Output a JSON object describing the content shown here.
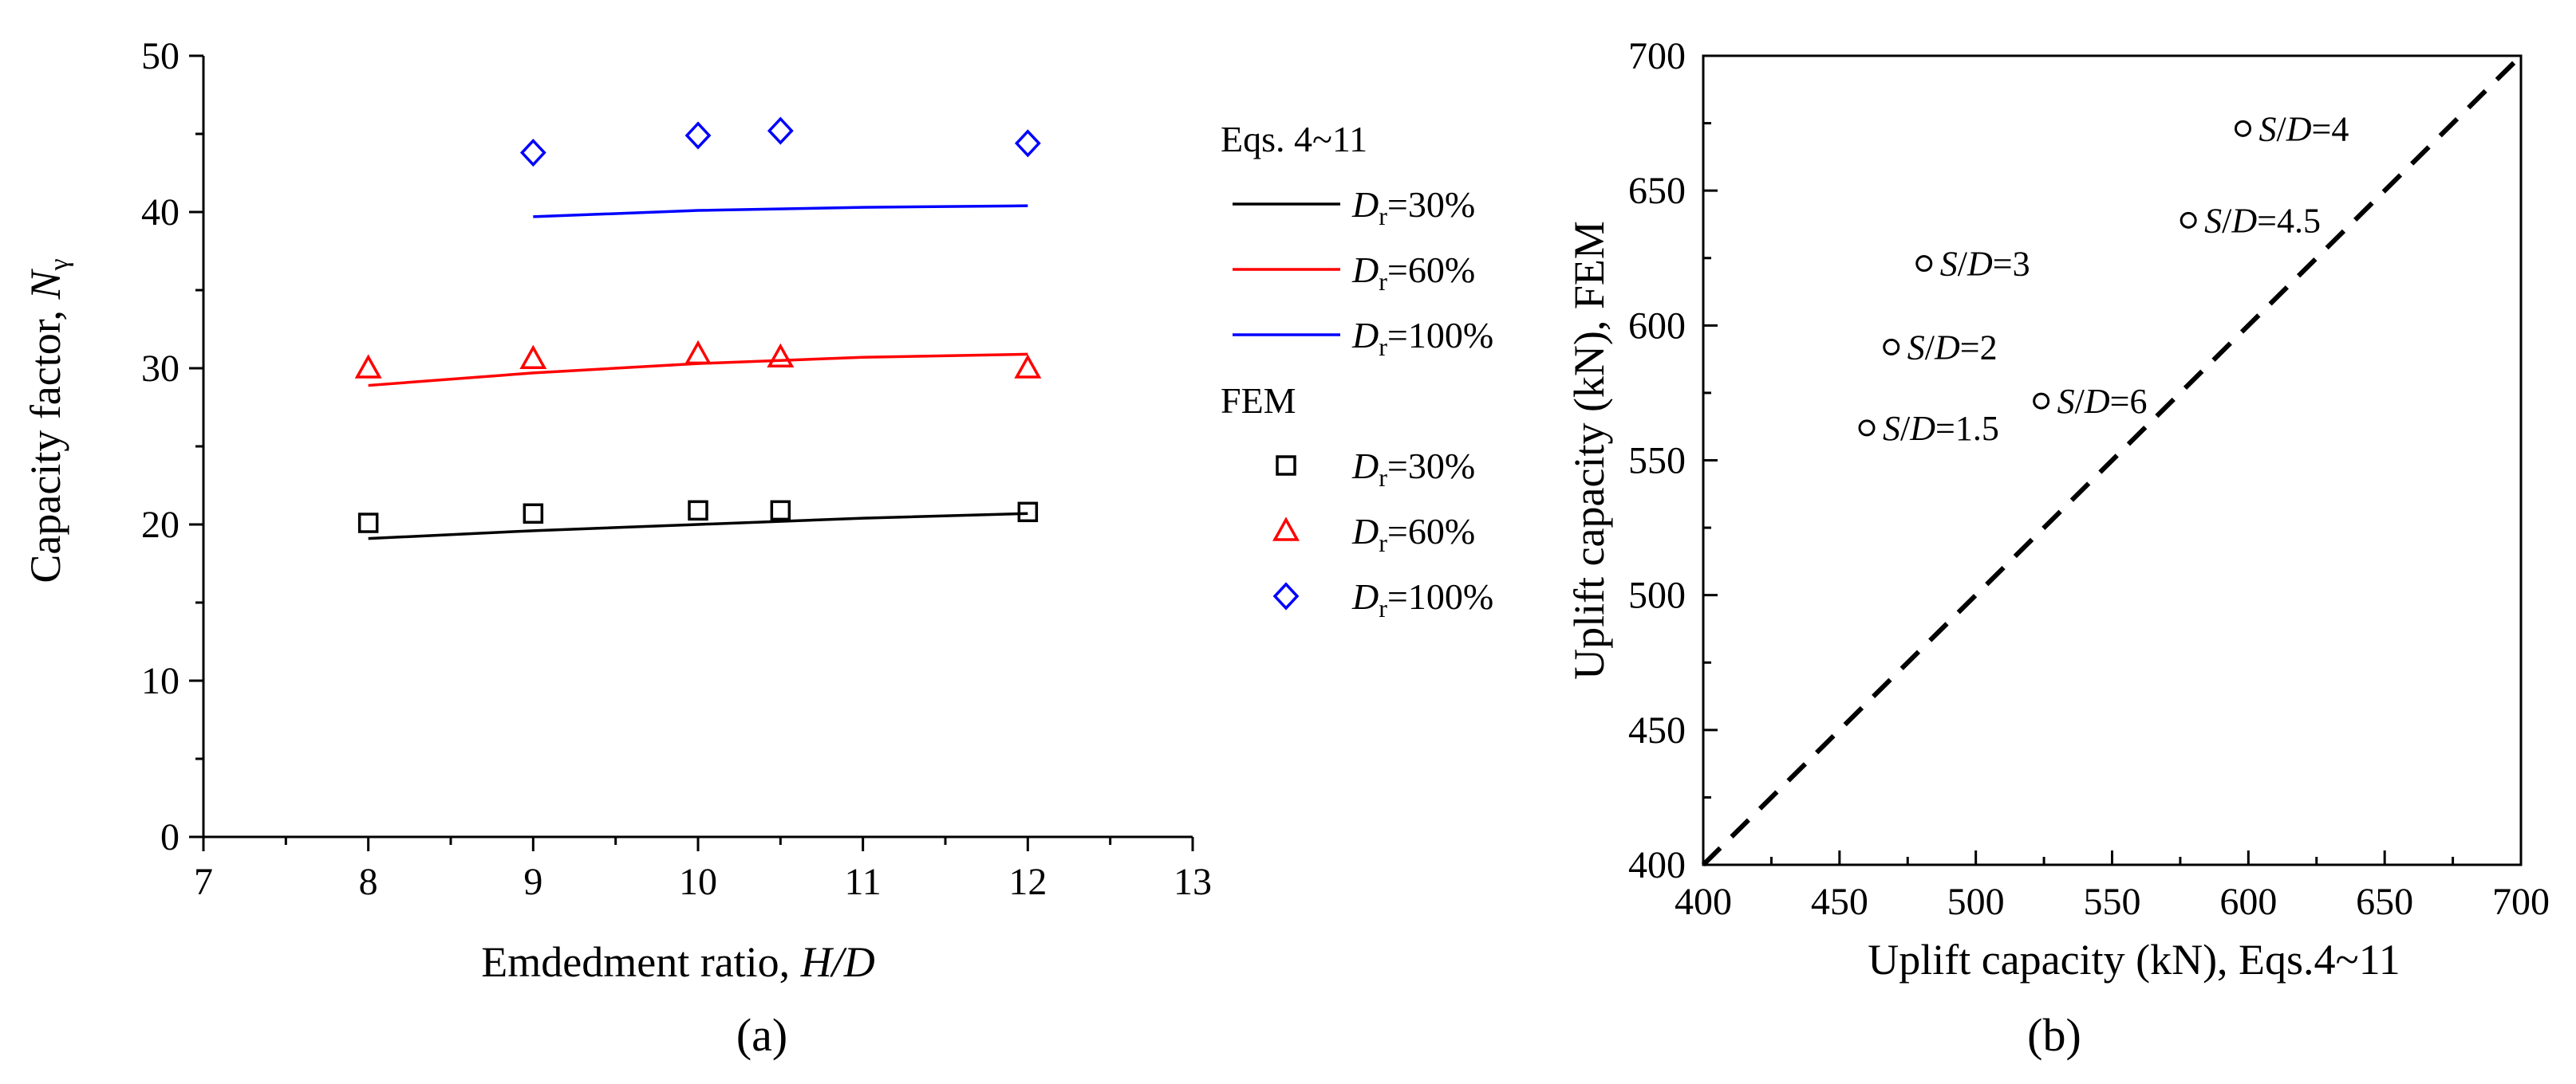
{
  "chart_data": [
    {
      "type": "line",
      "panel_label": "(a)",
      "title": "",
      "xlabel": "Emdedment ratio, ",
      "xlabel_italic": "H/D",
      "ylabel": "Capacity factor, ",
      "ylabel_italic": "N",
      "ylabel_subscript": "γ",
      "xlim": [
        7,
        13
      ],
      "ylim": [
        0,
        50
      ],
      "xticks": [
        7,
        8,
        9,
        10,
        11,
        12,
        13
      ],
      "yticks": [
        0,
        10,
        20,
        30,
        40,
        50
      ],
      "legend_position": "right",
      "legend_groups": [
        {
          "title": "Eqs. 4~11",
          "kind": "line"
        },
        {
          "title": "FEM",
          "kind": "marker"
        }
      ],
      "series": [
        {
          "group": "Eqs. 4~11",
          "name_prefix": "D",
          "name_subscript": "r",
          "name_suffix": "=30%",
          "kind": "line",
          "color": "#000000",
          "x": [
            8,
            9,
            10,
            11,
            12
          ],
          "values": [
            19.1,
            19.6,
            20.0,
            20.4,
            20.7
          ]
        },
        {
          "group": "Eqs. 4~11",
          "name_prefix": "D",
          "name_subscript": "r",
          "name_suffix": "=60%",
          "kind": "line",
          "color": "#ff0000",
          "x": [
            8,
            9,
            10,
            11,
            12
          ],
          "values": [
            28.9,
            29.7,
            30.3,
            30.7,
            30.9
          ]
        },
        {
          "group": "Eqs. 4~11",
          "name_prefix": "D",
          "name_subscript": "r",
          "name_suffix": "=100%",
          "kind": "line",
          "color": "#0000ff",
          "x": [
            9,
            10,
            11,
            12
          ],
          "values": [
            39.7,
            40.1,
            40.3,
            40.4
          ]
        },
        {
          "group": "FEM",
          "name_prefix": "D",
          "name_subscript": "r",
          "name_suffix": "=30%",
          "kind": "marker",
          "marker": "square",
          "color": "#000000",
          "x": [
            8,
            9,
            10,
            10.5,
            12
          ],
          "values": [
            20.1,
            20.7,
            20.9,
            20.9,
            20.8
          ]
        },
        {
          "group": "FEM",
          "name_prefix": "D",
          "name_subscript": "r",
          "name_suffix": "=60%",
          "kind": "marker",
          "marker": "triangle",
          "color": "#ff0000",
          "x": [
            8,
            9,
            10,
            10.5,
            12
          ],
          "values": [
            30.0,
            30.6,
            30.9,
            30.7,
            30.0
          ]
        },
        {
          "group": "FEM",
          "name_prefix": "D",
          "name_subscript": "r",
          "name_suffix": "=100%",
          "kind": "marker",
          "marker": "diamond",
          "color": "#0000ff",
          "x": [
            9,
            10,
            10.5,
            12
          ],
          "values": [
            43.8,
            44.9,
            45.2,
            44.4
          ]
        }
      ]
    },
    {
      "type": "scatter",
      "panel_label": "(b)",
      "title": "",
      "xlabel": "Uplift capacity (kN), Eqs.4~11",
      "ylabel": "Uplift capacity (kN), FEM",
      "xlim": [
        400,
        700
      ],
      "ylim": [
        400,
        700
      ],
      "xticks": [
        400,
        450,
        500,
        550,
        600,
        650,
        700
      ],
      "yticks": [
        400,
        450,
        500,
        550,
        600,
        650,
        700
      ],
      "reference_line": {
        "style": "dashed",
        "from": [
          400,
          400
        ],
        "to": [
          700,
          700
        ],
        "color": "#000000"
      },
      "points": [
        {
          "x": 460,
          "y": 562,
          "label_italic1": "S",
          "label_mid": "/",
          "label_italic2": "D",
          "label_suffix": "=1.5",
          "label_side": "right"
        },
        {
          "x": 469,
          "y": 592,
          "label_italic1": "S",
          "label_mid": "/",
          "label_italic2": "D",
          "label_suffix": "=2",
          "label_side": "right"
        },
        {
          "x": 481,
          "y": 623,
          "label_italic1": "S",
          "label_mid": "/",
          "label_italic2": "D",
          "label_suffix": "=3",
          "label_side": "right"
        },
        {
          "x": 598,
          "y": 673,
          "label_italic1": "S",
          "label_mid": "/",
          "label_italic2": "D",
          "label_suffix": "=4",
          "label_side": "right"
        },
        {
          "x": 578,
          "y": 639,
          "label_italic1": "S",
          "label_mid": "/",
          "label_italic2": "D",
          "label_suffix": "=4.5",
          "label_side": "right"
        },
        {
          "x": 524,
          "y": 572,
          "label_italic1": "S",
          "label_mid": "/",
          "label_italic2": "D",
          "label_suffix": "=6",
          "label_side": "right"
        }
      ]
    }
  ]
}
